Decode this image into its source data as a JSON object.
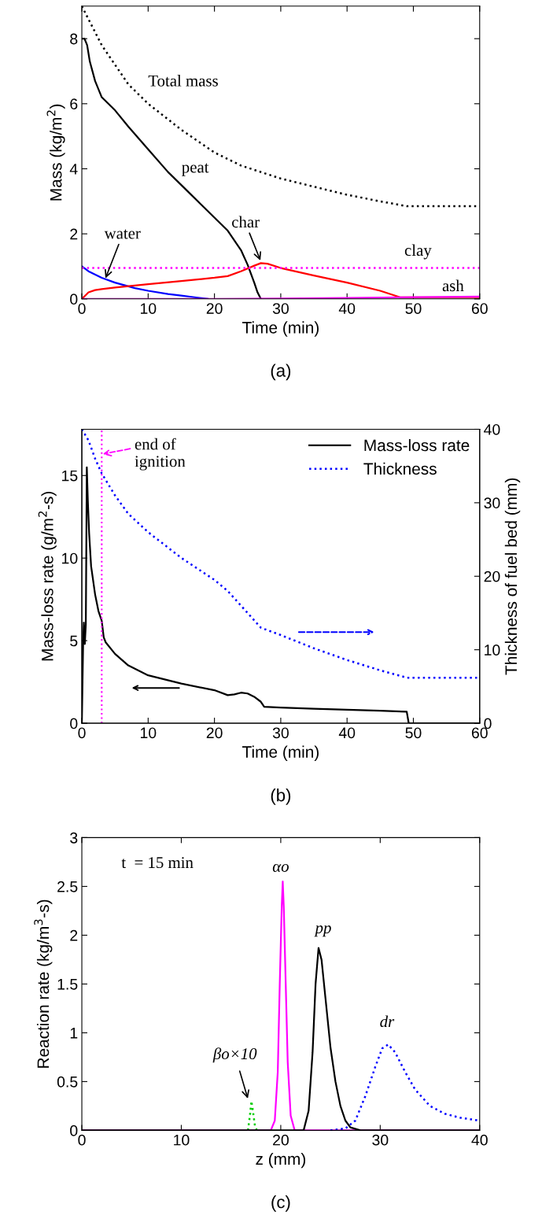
{
  "chart_data": [
    {
      "type": "line",
      "xlabel": "Time (min)",
      "ylabel": "Mass (kg/m$^{2}$)",
      "xlim": [
        0,
        60
      ],
      "xticks": [
        0,
        10,
        20,
        30,
        40,
        50,
        60
      ],
      "ylim": [
        0,
        9
      ],
      "yticks": [
        0,
        2,
        4,
        6,
        8
      ],
      "series": [
        {
          "color": "#000000",
          "line_style": "dotted",
          "x": [
            0,
            1,
            2,
            3,
            5,
            7,
            10,
            15,
            20,
            24,
            27,
            30,
            35,
            40,
            45,
            49,
            60
          ],
          "values": [
            9.0,
            8.6,
            8.2,
            7.8,
            7.2,
            6.6,
            6.0,
            5.2,
            4.5,
            4.1,
            3.9,
            3.7,
            3.45,
            3.2,
            3.0,
            2.85,
            2.85
          ]
        },
        {
          "color": "#000000",
          "line_style": "solid",
          "x": [
            0,
            0.4,
            0.8,
            1.2,
            2,
            3,
            4,
            5,
            7,
            10,
            13,
            15,
            18,
            20,
            22,
            24,
            25,
            26,
            26.5,
            27
          ],
          "values": [
            8.0,
            8.0,
            7.8,
            7.3,
            6.7,
            6.2,
            6.0,
            5.8,
            5.3,
            4.6,
            3.9,
            3.5,
            2.9,
            2.5,
            2.1,
            1.5,
            1.05,
            0.5,
            0.2,
            0.0
          ]
        },
        {
          "color": "#0000ff",
          "line_style": "solid",
          "x": [
            0,
            1,
            3,
            5,
            8,
            10,
            13,
            15,
            17,
            19
          ],
          "values": [
            1.0,
            0.85,
            0.65,
            0.5,
            0.33,
            0.25,
            0.15,
            0.1,
            0.05,
            0.0
          ]
        },
        {
          "color": "#ff0000",
          "line_style": "solid",
          "x": [
            0,
            0.5,
            1,
            2,
            3,
            5,
            10,
            15,
            20,
            22,
            24,
            26,
            27,
            28,
            30,
            35,
            40,
            45,
            48,
            60
          ],
          "values": [
            0.0,
            0.1,
            0.2,
            0.27,
            0.3,
            0.35,
            0.45,
            0.55,
            0.65,
            0.7,
            0.85,
            1.02,
            1.1,
            1.08,
            0.95,
            0.72,
            0.5,
            0.25,
            0.05,
            0.05
          ]
        },
        {
          "color": "#ff00ff",
          "line_style": "dotted",
          "x": [
            0,
            60
          ],
          "values": [
            0.95,
            0.95
          ]
        },
        {
          "color": "#ff00ff",
          "line_style": "solid",
          "x": [
            0,
            20,
            30,
            40,
            48,
            60
          ],
          "values": [
            0.0,
            0.0,
            0.01,
            0.03,
            0.05,
            0.07
          ]
        }
      ],
      "annotations": [
        "Total mass",
        "peat",
        {
          "text": "water",
          "x": 3.5,
          "y": 0.6
        },
        {
          "text": "char",
          "x": 27,
          "y": 1.15
        },
        "clay",
        "ash",
        "(a)"
      ]
    },
    {
      "type": "line",
      "xlabel": "Time (min)",
      "ylabel": "Mass-loss rate (g/m$^{2}$-s)",
      "y2label": "Thickness of fuel bed (mm)",
      "xlim": [
        0,
        60
      ],
      "xticks": [
        0,
        10,
        20,
        30,
        40,
        50,
        60
      ],
      "ylim": [
        0,
        17.8
      ],
      "yticks": [
        0,
        5,
        10,
        15
      ],
      "y2lim": [
        0,
        40
      ],
      "y2ticks": [
        0,
        10,
        20,
        30,
        40
      ],
      "legend": "top right",
      "series": [
        {
          "name": "Mass-loss rate",
          "color": "#000000",
          "line_style": "solid",
          "x": [
            0,
            0.2,
            0.3,
            0.45,
            0.6,
            0.75,
            0.9,
            1.1,
            1.4,
            2,
            2.5,
            3,
            3.3,
            3.6,
            5,
            7,
            10,
            15,
            20,
            22,
            23,
            24,
            25,
            26,
            27,
            27.5,
            30,
            35,
            40,
            45,
            49,
            49.3,
            60
          ],
          "values": [
            0,
            5,
            6.1,
            4.8,
            6.0,
            15.5,
            13.5,
            11.5,
            9.5,
            7.8,
            6.8,
            6.2,
            5.2,
            4.9,
            4.2,
            3.5,
            2.9,
            2.4,
            2.0,
            1.7,
            1.75,
            1.85,
            1.8,
            1.6,
            1.3,
            1.0,
            0.95,
            0.88,
            0.82,
            0.76,
            0.7,
            0.0,
            0.0
          ]
        },
        {
          "name": "Thickness",
          "color": "#0000ff",
          "line_style": "dotted",
          "axis": "y2",
          "x": [
            0,
            1,
            2,
            3,
            5,
            7,
            10,
            15,
            20,
            22,
            24,
            25,
            27,
            30,
            35,
            40,
            45,
            49,
            60
          ],
          "values": [
            40,
            38.5,
            36,
            34,
            31,
            28.5,
            26,
            22.5,
            19.5,
            18,
            16,
            15,
            13,
            12,
            10.2,
            8.6,
            7.2,
            6.2,
            6.2
          ]
        }
      ],
      "ref_lines": [
        {
          "axis": "x",
          "value": 3,
          "label": "end of\nignition",
          "color": "#ff00ff",
          "line_style": "dotted"
        }
      ],
      "annotations": [
        "(b)"
      ]
    },
    {
      "type": "line",
      "xlabel": "z (mm)",
      "ylabel": "Reaction rate (kg/m$^{3}$-s)",
      "xlim": [
        0,
        40
      ],
      "xticks": [
        0,
        10,
        20,
        30,
        40
      ],
      "ylim": [
        0,
        3
      ],
      "yticks": [
        0,
        0.5,
        1,
        1.5,
        2,
        2.5,
        3
      ],
      "series": [
        {
          "color": "#00cc00",
          "line_style": "dotted",
          "x": [
            16.7,
            16.9,
            17.05,
            17.2,
            17.4,
            17.6
          ],
          "values": [
            0,
            0.15,
            0.3,
            0.2,
            0.05,
            0
          ]
        },
        {
          "color": "#ff00ff",
          "line_style": "solid",
          "x": [
            0,
            19.0,
            19.4,
            19.7,
            19.9,
            20.1,
            20.2,
            20.3,
            20.5,
            20.7,
            21.0,
            21.4,
            40
          ],
          "values": [
            0,
            0,
            0.1,
            0.6,
            1.5,
            2.3,
            2.55,
            2.3,
            1.5,
            0.7,
            0.15,
            0,
            0
          ]
        },
        {
          "color": "#000000",
          "line_style": "solid",
          "x": [
            0,
            22.3,
            22.8,
            23.2,
            23.5,
            23.8,
            24.1,
            24.5,
            25,
            25.5,
            26,
            26.5,
            27,
            28,
            40
          ],
          "values": [
            0,
            0,
            0.2,
            0.8,
            1.5,
            1.87,
            1.75,
            1.35,
            0.85,
            0.5,
            0.25,
            0.1,
            0.03,
            0,
            0
          ]
        },
        {
          "color": "#0000ff",
          "line_style": "dotted",
          "x": [
            25,
            26.5,
            27.5,
            28.5,
            29.5,
            30.2,
            30.8,
            31.5,
            32.5,
            33.5,
            35,
            36.5,
            38,
            40
          ],
          "values": [
            0,
            0.02,
            0.1,
            0.35,
            0.65,
            0.84,
            0.88,
            0.8,
            0.6,
            0.42,
            0.25,
            0.17,
            0.13,
            0.1
          ]
        }
      ],
      "annotations": [
        "t  = 15 min",
        "αo",
        "pp",
        "dr",
        "βo×10",
        "(c)"
      ]
    }
  ]
}
